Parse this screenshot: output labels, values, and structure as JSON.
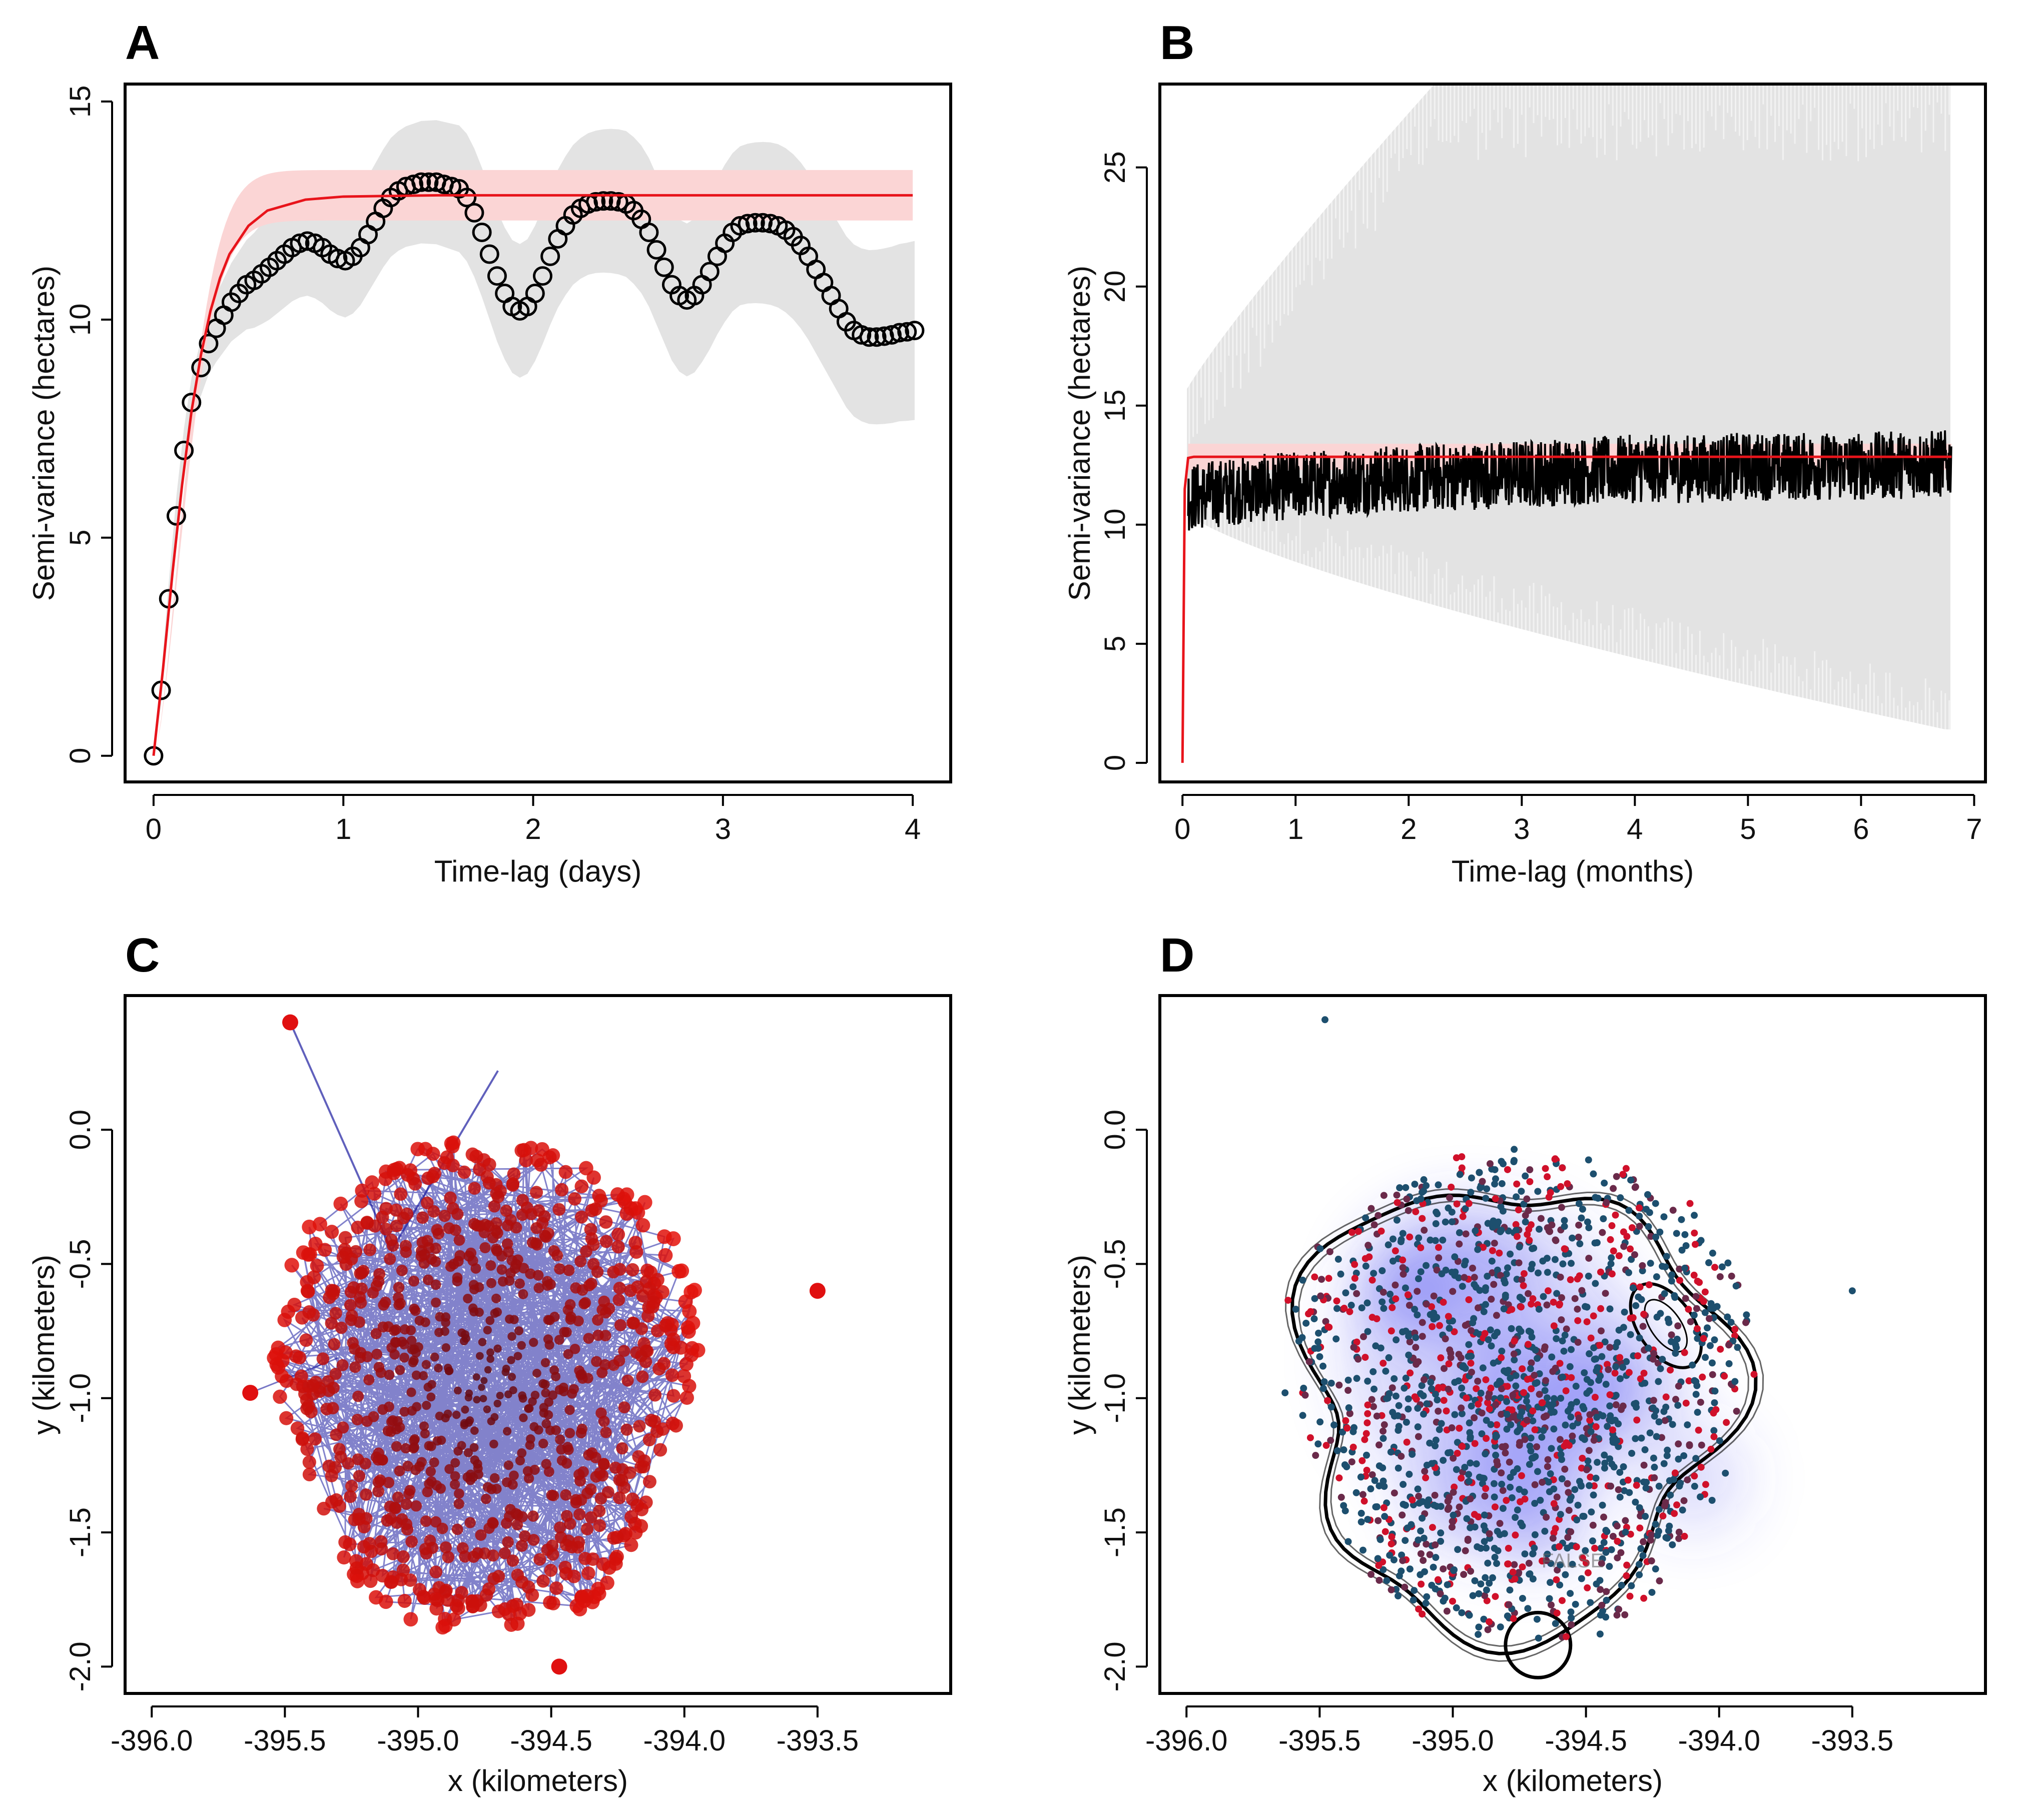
{
  "chart_data": [
    {
      "panel_label": "A",
      "type": "line",
      "xlabel": "Time-lag (days)",
      "ylabel": "Semi-variance (hectares)",
      "xlim": [
        -0.15,
        4.2
      ],
      "ylim": [
        -0.6,
        15.4
      ],
      "xticks": [
        0,
        1,
        2,
        3,
        4
      ],
      "yticks": [
        0,
        5,
        10,
        15
      ],
      "series": [
        {
          "kind": "points",
          "x": [
            0.0,
            0.04,
            0.08,
            0.12,
            0.16,
            0.2,
            0.25,
            0.29,
            0.33,
            0.37,
            0.41,
            0.45,
            0.49,
            0.53,
            0.57,
            0.61,
            0.65,
            0.69,
            0.73,
            0.77,
            0.81,
            0.85,
            0.89,
            0.93,
            0.97,
            1.01,
            1.05,
            1.09,
            1.13,
            1.17,
            1.21,
            1.25,
            1.29,
            1.33,
            1.37,
            1.41,
            1.45,
            1.49,
            1.53,
            1.57,
            1.61,
            1.65,
            1.69,
            1.73,
            1.77,
            1.81,
            1.85,
            1.89,
            1.93,
            1.97,
            2.01,
            2.05,
            2.09,
            2.13,
            2.17,
            2.21,
            2.25,
            2.29,
            2.33,
            2.37,
            2.41,
            2.45,
            2.49,
            2.53,
            2.57,
            2.61,
            2.65,
            2.69,
            2.73,
            2.77,
            2.81,
            2.85,
            2.89,
            2.93,
            2.97,
            3.01,
            3.05,
            3.09,
            3.13,
            3.17,
            3.21,
            3.25,
            3.29,
            3.33,
            3.37,
            3.41,
            3.45,
            3.49,
            3.53,
            3.57,
            3.61,
            3.65,
            3.69,
            3.73,
            3.77,
            3.81,
            3.85,
            3.89,
            3.93,
            3.97,
            4.01
          ],
          "y": [
            0.0,
            1.5,
            3.6,
            5.5,
            7.0,
            8.1,
            8.9,
            9.45,
            9.8,
            10.1,
            10.4,
            10.6,
            10.8,
            10.9,
            11.05,
            11.2,
            11.35,
            11.5,
            11.65,
            11.75,
            11.8,
            11.75,
            11.65,
            11.5,
            11.4,
            11.35,
            11.45,
            11.65,
            11.95,
            12.25,
            12.55,
            12.8,
            12.95,
            13.05,
            13.1,
            13.15,
            13.15,
            13.15,
            13.1,
            13.05,
            13.0,
            12.8,
            12.45,
            12.0,
            11.5,
            11.0,
            10.6,
            10.3,
            10.2,
            10.3,
            10.6,
            11.0,
            11.45,
            11.85,
            12.15,
            12.4,
            12.55,
            12.65,
            12.7,
            12.72,
            12.72,
            12.7,
            12.65,
            12.5,
            12.3,
            12.0,
            11.6,
            11.2,
            10.8,
            10.55,
            10.45,
            10.55,
            10.8,
            11.1,
            11.45,
            11.75,
            12.0,
            12.15,
            12.2,
            12.22,
            12.22,
            12.2,
            12.15,
            12.05,
            11.9,
            11.7,
            11.45,
            11.15,
            10.85,
            10.55,
            10.25,
            9.95,
            9.75,
            9.65,
            9.6,
            9.6,
            9.62,
            9.65,
            9.7,
            9.72,
            9.75
          ]
        },
        {
          "kind": "model",
          "x": [
            0,
            0.05,
            0.1,
            0.15,
            0.2,
            0.25,
            0.3,
            0.35,
            0.4,
            0.5,
            0.6,
            0.8,
            1.0,
            1.5,
            2.0,
            3.0,
            4.0
          ],
          "y": [
            0,
            2.0,
            4.2,
            6.2,
            7.9,
            9.2,
            10.2,
            10.95,
            11.5,
            12.15,
            12.5,
            12.75,
            12.82,
            12.85,
            12.85,
            12.85,
            12.85
          ]
        }
      ]
    },
    {
      "panel_label": "B",
      "type": "line",
      "xlabel": "Time-lag (months)",
      "ylabel": "Semi-variance (hectares)",
      "xlim": [
        -0.2,
        7.1
      ],
      "ylim": [
        -0.8,
        28.5
      ],
      "xticks": [
        0,
        1,
        2,
        3,
        4,
        5,
        6,
        7
      ],
      "yticks": [
        0,
        5,
        10,
        15,
        20,
        25
      ],
      "series": [
        {
          "kind": "empirical",
          "x": [
            0.05,
            0.5,
            1.0,
            1.5,
            2.0,
            2.5,
            3.0,
            3.5,
            4.0,
            4.5,
            5.0,
            5.5,
            6.0,
            6.5,
            6.8
          ],
          "y": [
            11.0,
            11.3,
            11.5,
            11.7,
            11.8,
            11.9,
            12.0,
            12.1,
            12.2,
            12.2,
            12.3,
            12.3,
            12.3,
            12.4,
            12.4
          ]
        },
        {
          "kind": "model",
          "x": [
            0,
            0.02,
            0.05,
            0.1,
            1,
            2,
            3,
            4,
            5,
            6,
            6.8
          ],
          "y": [
            0,
            11.5,
            12.8,
            12.85,
            12.85,
            12.85,
            12.85,
            12.85,
            12.85,
            12.85,
            12.85
          ]
        }
      ]
    },
    {
      "panel_label": "C",
      "type": "scatter",
      "xlabel": "x (kilometers)",
      "ylabel": "y (kilometers)",
      "xlim": [
        -396.1,
        -393.0
      ],
      "ylim": [
        -2.1,
        0.5
      ],
      "xticks": [
        -396.0,
        -395.5,
        -395.0,
        -394.5,
        -394.0,
        -393.5
      ],
      "xticklabels": [
        "-396.0",
        "-395.5",
        "-395.0",
        "-394.5",
        "-394.0",
        "-393.5"
      ],
      "yticks": [
        0.0,
        -0.5,
        -1.0,
        -1.5,
        -2.0
      ],
      "yticklabels": [
        "0.0",
        "-0.5",
        "-1.0",
        "-1.5",
        "-2.0"
      ],
      "center": [
        -394.8,
        -0.9
      ],
      "outliers": [
        [
          -395.48,
          0.4
        ],
        [
          -395.63,
          -0.98
        ],
        [
          -393.5,
          -0.6
        ],
        [
          -394.47,
          -2.0
        ]
      ]
    },
    {
      "panel_label": "D",
      "type": "scatter",
      "xlabel": "x (kilometers)",
      "ylabel": "y (kilometers)",
      "xlim": [
        -396.1,
        -393.0
      ],
      "ylim": [
        -2.1,
        0.5
      ],
      "xticks": [
        -396.0,
        -395.5,
        -395.0,
        -394.5,
        -394.0,
        -393.5
      ],
      "xticklabels": [
        "-396.0",
        "-395.5",
        "-395.0",
        "-394.5",
        "-394.0",
        "-393.5"
      ],
      "yticks": [
        0.0,
        -0.5,
        -1.0,
        -1.5,
        -2.0
      ],
      "yticklabels": [
        "0.0",
        "-0.5",
        "-1.0",
        "-1.5",
        "-2.0"
      ],
      "center": [
        -394.8,
        -0.9
      ],
      "annotation": "FALSE",
      "outliers": [
        [
          -395.48,
          0.41
        ],
        [
          -395.63,
          -0.98
        ],
        [
          -393.5,
          -0.6
        ]
      ]
    }
  ],
  "colors": {
    "model": "#e8141b",
    "model_band": "#fbd5d5",
    "ci_band": "#e3e3e3",
    "points": "#000000",
    "track_line": "#1c1ca0",
    "track_point": "#b01010",
    "dot_blue": "#1d4f6e",
    "dot_red": "#d0102a",
    "density": "#4a4af0"
  }
}
